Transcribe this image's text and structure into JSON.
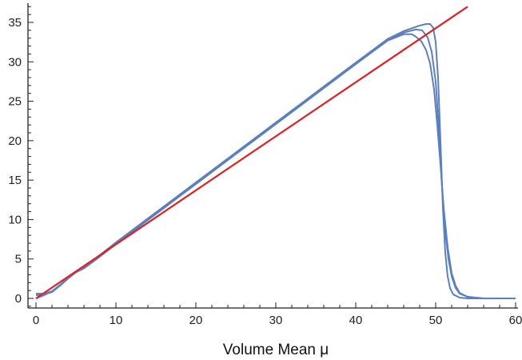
{
  "chart_data": {
    "type": "line",
    "title": "",
    "xlabel": "Volume Mean μ",
    "ylabel": "",
    "xlim": [
      0,
      60
    ],
    "ylim": [
      -1,
      37
    ],
    "x_ticks": [
      "0",
      "10",
      "20",
      "30",
      "40",
      "50",
      "60"
    ],
    "y_ticks": [
      "0",
      "5",
      "10",
      "15",
      "20",
      "25",
      "30",
      "35"
    ],
    "grid": false,
    "legend": "none",
    "series": [
      {
        "color": "#5b7fbf",
        "x": [
          0,
          1,
          2,
          3,
          4,
          5,
          6,
          8,
          10,
          15,
          20,
          25,
          30,
          35,
          40,
          44,
          46,
          47,
          47.5,
          48.2,
          48.8,
          49.3,
          49.8,
          50.2,
          50.6,
          51,
          51.5,
          52,
          52.5,
          53,
          54,
          56,
          60
        ],
        "y": [
          0.6,
          0.6,
          0.9,
          1.7,
          2.6,
          3.3,
          3.8,
          5.3,
          6.9,
          10.7,
          14.5,
          18.3,
          22.1,
          25.9,
          29.7,
          32.7,
          33.5,
          33.5,
          33.2,
          32.6,
          31.5,
          29.8,
          26.5,
          22.0,
          17.0,
          11.5,
          6.5,
          3.2,
          1.6,
          0.7,
          0.2,
          0.0,
          0.0
        ]
      },
      {
        "color": "#5b7fbf",
        "x": [
          0,
          1,
          2,
          3,
          4,
          5,
          6,
          8,
          10,
          15,
          20,
          25,
          30,
          35,
          40,
          44,
          46,
          47.5,
          48.3,
          49,
          49.5,
          50,
          50.4,
          50.8,
          51.2,
          51.6,
          52,
          52.5,
          53,
          54,
          56,
          60
        ],
        "y": [
          0.4,
          0.5,
          0.8,
          1.6,
          2.5,
          3.3,
          3.9,
          5.4,
          7.0,
          10.8,
          14.6,
          18.4,
          22.2,
          26.0,
          29.8,
          32.8,
          33.7,
          34.1,
          34.0,
          33.1,
          31.3,
          27.5,
          21.5,
          14.0,
          8.5,
          5.0,
          2.8,
          1.3,
          0.6,
          0.2,
          0.0,
          0.0
        ]
      },
      {
        "color": "#5b7fbf",
        "x": [
          0,
          1,
          2,
          3,
          4,
          5,
          6,
          8,
          10,
          15,
          20,
          25,
          30,
          35,
          40,
          44,
          46,
          48,
          48.8,
          49.3,
          49.7,
          50,
          50.3,
          50.6,
          50.9,
          51.2,
          51.5,
          51.8,
          52.2,
          53,
          54,
          56,
          60
        ],
        "y": [
          0.0,
          0.4,
          0.9,
          1.7,
          2.6,
          3.4,
          4.0,
          5.5,
          7.1,
          10.9,
          14.7,
          18.5,
          22.3,
          26.1,
          29.9,
          32.9,
          33.9,
          34.6,
          34.8,
          34.8,
          34.3,
          32.5,
          28.0,
          20.0,
          11.5,
          5.8,
          2.8,
          1.3,
          0.5,
          0.1,
          0.0,
          0.0,
          0.0
        ]
      },
      {
        "color": "#e02020",
        "x": [
          0,
          54
        ],
        "y": [
          0,
          37
        ]
      }
    ]
  }
}
